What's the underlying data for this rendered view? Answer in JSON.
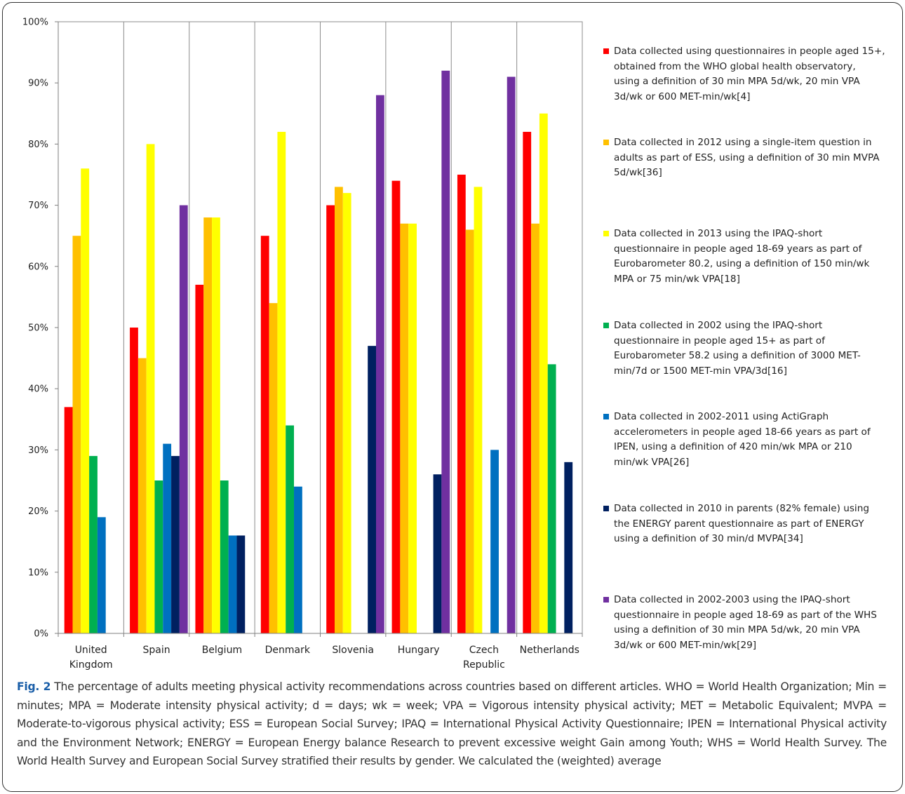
{
  "chart_data": {
    "type": "bar",
    "categories": [
      "United Kingdom",
      "Spain",
      "Belgium",
      "Denmark",
      "Slovenia",
      "Hungary",
      "Czech Republic",
      "Netherlands"
    ],
    "category_lines": [
      [
        "United",
        "Kingdom"
      ],
      [
        "Spain"
      ],
      [
        "Belgium"
      ],
      [
        "Denmark"
      ],
      [
        "Slovenia"
      ],
      [
        "Hungary"
      ],
      [
        "Czech",
        "Republic"
      ],
      [
        "Netherlands"
      ]
    ],
    "ylim": [
      0,
      100
    ],
    "yticks": [
      0,
      10,
      20,
      30,
      40,
      50,
      60,
      70,
      80,
      90,
      100
    ],
    "ytick_labels": [
      "0%",
      "10%",
      "20%",
      "30%",
      "40%",
      "50%",
      "60%",
      "70%",
      "80%",
      "90%",
      "100%"
    ],
    "grid": "vertical category dividers",
    "legend_position": "right",
    "series": [
      {
        "name": "Data collected using questionnaires in people aged 15+, obtained from the WHO global health observatory, using a definition of 30 min MPA 5d/wk, 20 min VPA 3d/wk or 600 MET-min/wk[4]",
        "legend_lines": [
          "Data collected using questionnaires in people aged 15+,",
          "obtained from the WHO global health observatory,",
          "using a definition of 30 min MPA 5d/wk, 20 min VPA",
          "3d/wk or 600 MET-min/wk[4]"
        ],
        "color": "#ff0000",
        "values": [
          37,
          50,
          57,
          65,
          70,
          74,
          75,
          82
        ]
      },
      {
        "name": "Data collected in 2012 using a single-item question in adults as part of ESS, using a definition of 30 min MVPA 5d/wk[36]",
        "legend_lines": [
          "Data collected in 2012 using a single-item question in",
          "adults as part of ESS, using a definition of 30 min MVPA",
          "5d/wk[36]"
        ],
        "color": "#ffc000",
        "values": [
          65,
          45,
          68,
          54,
          73,
          67,
          66,
          67
        ]
      },
      {
        "name": "Data collected in 2013 using the IPAQ-short questionnaire in people aged 18-69 years as part of Eurobarometer 80.2, using a definition of 150 min/wk MPA or 75 min/wk VPA[18]",
        "legend_lines": [
          "Data collected in 2013 using the IPAQ-short",
          "questionnaire in people aged 18-69 years as part of",
          "Eurobarometer 80.2, using a definition of 150 min/wk",
          "MPA or 75 min/wk VPA[18]"
        ],
        "color": "#ffff00",
        "values": [
          76,
          80,
          68,
          82,
          72,
          67,
          73,
          85
        ]
      },
      {
        "name": "Data collected in 2002 using the IPAQ-short questionnaire in people aged 15+ as part of Eurobarometer 58.2 using a definition of 3000 MET-min/7d or 1500 MET-min VPA/3d[16]",
        "legend_lines": [
          "Data collected in 2002 using the IPAQ-short",
          "questionnaire in people aged 15+ as part of",
          "Eurobarometer 58.2 using a definition of 3000 MET-",
          "min/7d or 1500 MET-min VPA/3d[16]"
        ],
        "color": "#00b050",
        "values": [
          29,
          25,
          25,
          34,
          null,
          null,
          null,
          44
        ]
      },
      {
        "name": "Data collected in 2002-2011 using ActiGraph accelerometers in people aged 18-66 years as part of IPEN, using a definition of 420 min/wk MPA or 210 min/wk VPA[26]",
        "legend_lines": [
          "Data collected in 2002-2011 using ActiGraph",
          "accelerometers in people aged 18-66 years as part of",
          "IPEN, using a definition of 420 min/wk MPA or 210",
          "min/wk VPA[26]"
        ],
        "color": "#0070c0",
        "values": [
          19,
          31,
          16,
          24,
          null,
          null,
          30,
          null
        ]
      },
      {
        "name": "Data collected in 2010 in parents (82% female) using the ENERGY parent questionnaire as part of ENERGY using a definition of 30 min/d MVPA[34]",
        "legend_lines": [
          "Data collected in 2010 in parents (82% female) using",
          "the ENERGY parent questionnaire as part of ENERGY",
          "using a definition of 30 min/d MVPA[34]"
        ],
        "color": "#002060",
        "values": [
          null,
          29,
          16,
          null,
          47,
          26,
          null,
          28
        ]
      },
      {
        "name": "Data collected in 2002-2003 using the IPAQ-short questionnaire in people aged 18-69 as part of the WHS using a definition of 30 min MPA 5d/wk, 20 min VPA 3d/wk or 600 MET-min/wk[29]",
        "legend_lines": [
          "Data collected in 2002-2003 using the IPAQ-short",
          "questionnaire in people aged 18-69 as part of the WHS",
          "using a definition of 30 min MPA 5d/wk, 20 min VPA",
          "3d/wk or 600 MET-min/wk[29]"
        ],
        "color": "#7030a0",
        "values": [
          null,
          70,
          null,
          null,
          88,
          92,
          91,
          null
        ]
      }
    ]
  },
  "caption": {
    "label": "Fig. 2",
    "text": "The percentage of adults meeting physical activity recommendations across countries based on different articles. WHO = World Health Organization; Min = minutes; MPA = Moderate intensity physical activity; d = days; wk = week; VPA = Vigorous intensity physical activity; MET = Metabolic Equivalent; MVPA = Moderate-to-vigorous physical activity; ESS = European Social Survey; IPAQ = International Physical Activity Questionnaire; IPEN = International Physical activity and the Environment Network; ENERGY = European Energy balance Research to prevent excessive weight Gain among Youth; WHS = World Health Survey. The World Health Survey and European Social Survey stratified their results by gender. We calculated the (weighted) average"
  }
}
